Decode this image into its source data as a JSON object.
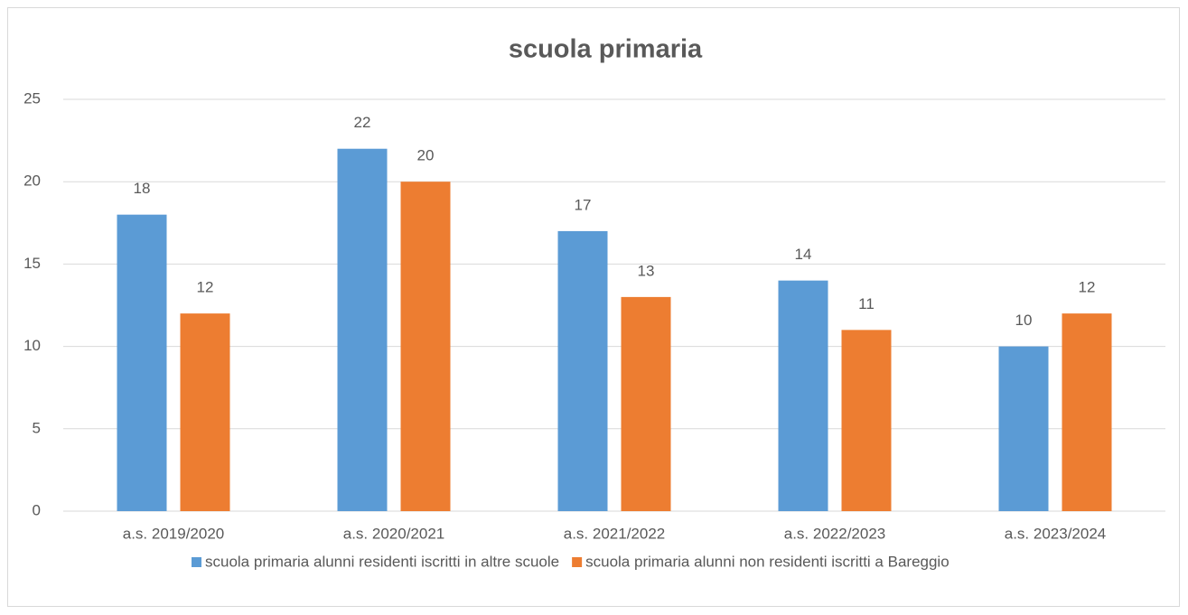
{
  "chart_data": {
    "type": "bar",
    "title": "scuola primaria",
    "categories": [
      "a.s. 2019/2020",
      "a.s. 2020/2021",
      "a.s. 2021/2022",
      "a.s. 2022/2023",
      "a.s. 2023/2024"
    ],
    "series": [
      {
        "name": "scuola primaria alunni residenti iscritti in altre scuole",
        "color": "#5b9bd5",
        "values": [
          18,
          22,
          17,
          14,
          10
        ]
      },
      {
        "name": "scuola primaria alunni non residenti iscritti a Bareggio",
        "color": "#ed7d31",
        "values": [
          12,
          20,
          13,
          11,
          12
        ]
      }
    ],
    "ylim": [
      0,
      25
    ],
    "yticks": [
      0,
      5,
      10,
      15,
      20,
      25
    ],
    "grid": true,
    "legend": "bottom"
  }
}
